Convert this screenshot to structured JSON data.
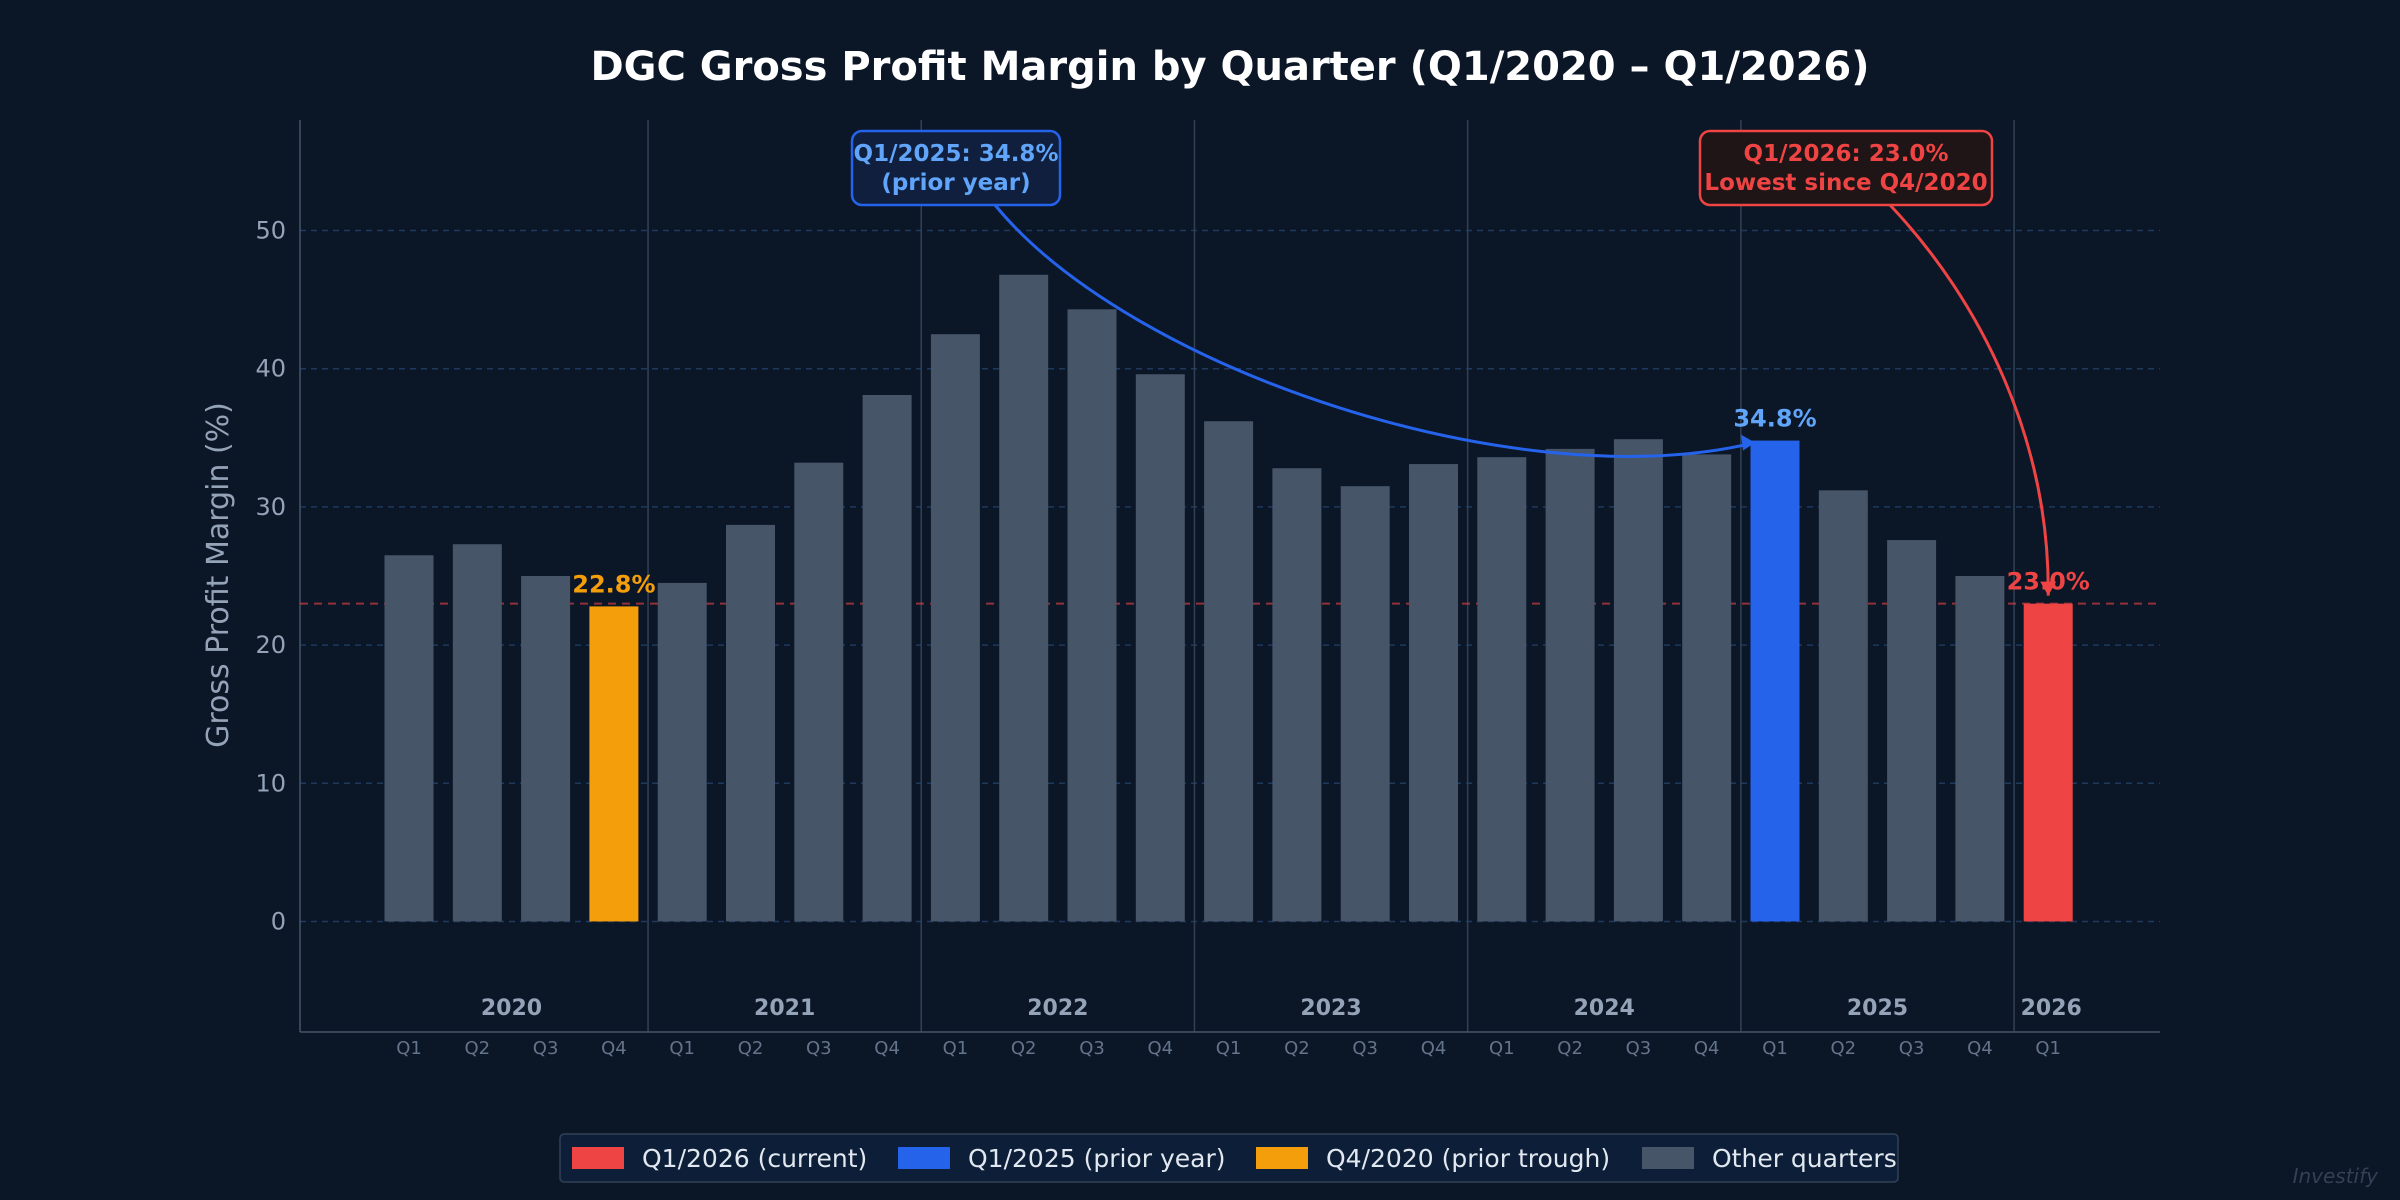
{
  "chart_data": {
    "type": "bar",
    "title": "DGC Gross Profit Margin by Quarter (Q1/2020 – Q1/2026)",
    "xlabel": "",
    "ylabel": "Gross Profit Margin (%)",
    "ylim": [
      -8,
      58
    ],
    "yticks": [
      0,
      10,
      20,
      30,
      40,
      50
    ],
    "grid": true,
    "reference_line": 23.0,
    "years": [
      {
        "label": "2020",
        "quarters": [
          "Q1",
          "Q2",
          "Q3",
          "Q4"
        ]
      },
      {
        "label": "2021",
        "quarters": [
          "Q1",
          "Q2",
          "Q3",
          "Q4"
        ]
      },
      {
        "label": "2022",
        "quarters": [
          "Q1",
          "Q2",
          "Q3",
          "Q4"
        ]
      },
      {
        "label": "2023",
        "quarters": [
          "Q1",
          "Q2",
          "Q3",
          "Q4"
        ]
      },
      {
        "label": "2024",
        "quarters": [
          "Q1",
          "Q2",
          "Q3",
          "Q4"
        ]
      },
      {
        "label": "2025",
        "quarters": [
          "Q1",
          "Q2",
          "Q3",
          "Q4"
        ]
      },
      {
        "label": "2026",
        "quarters": [
          "Q1"
        ]
      }
    ],
    "values": [
      26.5,
      27.3,
      25.0,
      22.8,
      24.5,
      28.7,
      33.2,
      38.1,
      42.5,
      46.8,
      44.3,
      39.6,
      36.2,
      32.8,
      31.5,
      33.1,
      33.6,
      34.2,
      34.9,
      33.8,
      34.8,
      31.2,
      27.6,
      25.0,
      23.0
    ],
    "categories": [
      "Q1/2020",
      "Q2/2020",
      "Q3/2020",
      "Q4/2020",
      "Q1/2021",
      "Q2/2021",
      "Q3/2021",
      "Q4/2021",
      "Q1/2022",
      "Q2/2022",
      "Q3/2022",
      "Q4/2022",
      "Q1/2023",
      "Q2/2023",
      "Q3/2023",
      "Q4/2023",
      "Q1/2024",
      "Q2/2024",
      "Q3/2024",
      "Q4/2024",
      "Q1/2025",
      "Q2/2025",
      "Q3/2025",
      "Q4/2025",
      "Q1/2026"
    ],
    "highlights": [
      {
        "index": 3,
        "label": "22.8%",
        "color": "#f59e0b"
      },
      {
        "index": 20,
        "label": "34.8%",
        "color": "#2563eb",
        "label_color": "#60a5fa"
      },
      {
        "index": 24,
        "label": "23.0%",
        "color": "#ef4444"
      }
    ],
    "annotations": [
      {
        "target_index": 20,
        "lines": [
          "Q1/2025: 34.8%",
          "(prior year)"
        ],
        "color": "#2563eb",
        "text_color": "#60a5fa",
        "box_fill": "#0f1f3d"
      },
      {
        "target_index": 24,
        "lines": [
          "Q1/2026: 23.0%",
          "Lowest since Q4/2020"
        ],
        "color": "#ef4444",
        "text_color": "#ef4444",
        "box_fill": "#1f1416"
      }
    ],
    "legend": {
      "position": "bottom-center",
      "items": [
        {
          "label": "Q1/2026 (current)",
          "color": "#ef4444"
        },
        {
          "label": "Q1/2025 (prior year)",
          "color": "#2563eb"
        },
        {
          "label": "Q4/2020 (prior trough)",
          "color": "#f59e0b"
        },
        {
          "label": "Other quarters",
          "color": "#475569"
        }
      ]
    },
    "default_color": "#475569",
    "watermark": "Investify"
  }
}
